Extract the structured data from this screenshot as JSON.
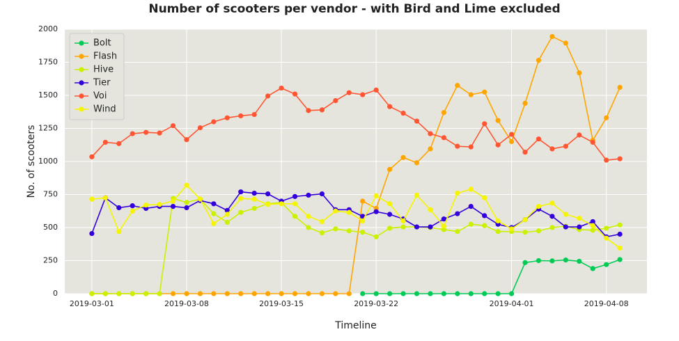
{
  "chart_data": {
    "type": "line",
    "title": "Number of scooters per vendor - with Bird and Lime excluded",
    "x_label": "Timeline",
    "y_label": "No. of scooters",
    "x": [
      "2019-03-01",
      "2019-03-02",
      "2019-03-03",
      "2019-03-04",
      "2019-03-05",
      "2019-03-06",
      "2019-03-07",
      "2019-03-08",
      "2019-03-09",
      "2019-03-10",
      "2019-03-11",
      "2019-03-12",
      "2019-03-13",
      "2019-03-14",
      "2019-03-15",
      "2019-03-16",
      "2019-03-17",
      "2019-03-18",
      "2019-03-19",
      "2019-03-20",
      "2019-03-21",
      "2019-03-22",
      "2019-03-23",
      "2019-03-24",
      "2019-03-25",
      "2019-03-26",
      "2019-03-27",
      "2019-03-28",
      "2019-03-29",
      "2019-03-30",
      "2019-03-31",
      "2019-04-01",
      "2019-04-02",
      "2019-04-03",
      "2019-04-04",
      "2019-04-05",
      "2019-04-06",
      "2019-04-07",
      "2019-04-08",
      "2019-04-09"
    ],
    "xlim": [
      "2019-02-27",
      "2019-04-11"
    ],
    "xticks": [
      "2019-03-01",
      "2019-03-08",
      "2019-03-15",
      "2019-03-22",
      "2019-04-01",
      "2019-04-08"
    ],
    "ylim": [
      0,
      2000
    ],
    "yticks": [
      0,
      250,
      500,
      750,
      1000,
      1250,
      1500,
      1750,
      2000
    ],
    "grid": true,
    "legend": "upper left",
    "series": [
      {
        "name": "Bolt",
        "color": "#00cc55",
        "values": [
          null,
          null,
          null,
          null,
          null,
          null,
          null,
          null,
          null,
          null,
          null,
          null,
          null,
          null,
          null,
          null,
          null,
          null,
          null,
          null,
          0,
          0,
          0,
          0,
          0,
          0,
          0,
          0,
          0,
          0,
          0,
          0,
          235,
          250,
          248,
          255,
          245,
          190,
          220,
          258
        ]
      },
      {
        "name": "Flash",
        "color": "#ffa500",
        "values": [
          0,
          0,
          0,
          0,
          0,
          0,
          0,
          0,
          0,
          0,
          0,
          0,
          0,
          0,
          0,
          0,
          0,
          0,
          0,
          0,
          700,
          645,
          940,
          1030,
          990,
          1095,
          1370,
          1575,
          1505,
          1525,
          1310,
          1150,
          1440,
          1765,
          1945,
          1895,
          1670,
          1160,
          1330,
          1560
        ]
      },
      {
        "name": "Hive",
        "color": "#ccf000",
        "values": [
          0,
          0,
          0,
          0,
          0,
          0,
          720,
          690,
          715,
          605,
          540,
          615,
          645,
          680,
          690,
          585,
          500,
          460,
          490,
          475,
          465,
          430,
          495,
          505,
          505,
          500,
          485,
          470,
          525,
          515,
          470,
          470,
          465,
          475,
          500,
          510,
          485,
          480,
          495,
          520
        ]
      },
      {
        "name": "Tier",
        "color": "#3300dd",
        "values": [
          455,
          725,
          650,
          665,
          645,
          660,
          660,
          650,
          705,
          680,
          630,
          770,
          760,
          755,
          700,
          735,
          745,
          755,
          635,
          635,
          585,
          620,
          600,
          565,
          505,
          505,
          565,
          605,
          660,
          590,
          525,
          500,
          560,
          640,
          585,
          505,
          505,
          545,
          430,
          450
        ]
      },
      {
        "name": "Voi",
        "color": "#ff5533",
        "values": [
          1035,
          1145,
          1135,
          1210,
          1220,
          1215,
          1270,
          1165,
          1255,
          1300,
          1330,
          1345,
          1355,
          1495,
          1555,
          1510,
          1385,
          1390,
          1460,
          1520,
          1505,
          1540,
          1415,
          1365,
          1305,
          1210,
          1180,
          1115,
          1110,
          1285,
          1125,
          1205,
          1070,
          1170,
          1095,
          1115,
          1200,
          1145,
          1010,
          1020
        ]
      },
      {
        "name": "Wind",
        "color": "#f5f500",
        "values": [
          715,
          725,
          470,
          625,
          670,
          675,
          700,
          820,
          715,
          530,
          600,
          720,
          715,
          675,
          680,
          680,
          585,
          545,
          625,
          615,
          550,
          740,
          680,
          550,
          745,
          635,
          510,
          760,
          790,
          725,
          550,
          490,
          560,
          660,
          685,
          600,
          570,
          515,
          420,
          345
        ]
      }
    ]
  }
}
